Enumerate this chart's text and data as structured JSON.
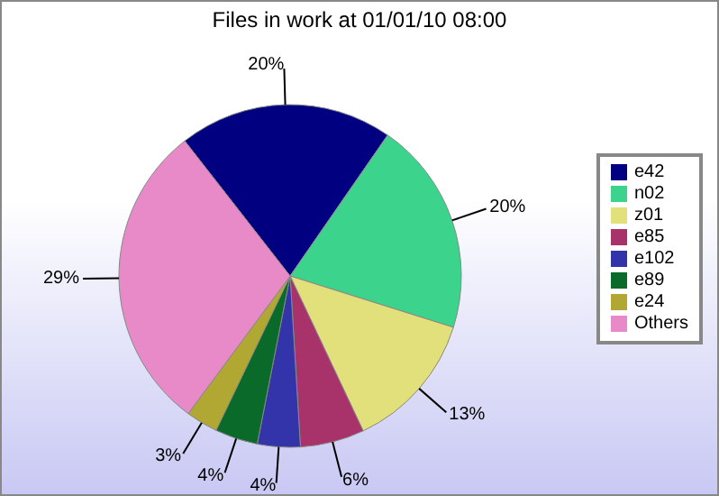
{
  "chart_data": {
    "type": "pie",
    "title": "Files in work at 01/01/10 08:00",
    "categories": [
      "e42",
      "n02",
      "z01",
      "e85",
      "e102",
      "e89",
      "e24",
      "Others"
    ],
    "values": [
      20,
      20,
      13,
      6,
      4,
      4,
      3,
      29
    ],
    "value_labels": [
      "20%",
      "20%",
      "13%",
      "6%",
      "4%",
      "4%",
      "3%",
      "29%"
    ],
    "colors": [
      "#000080",
      "#3cd48c",
      "#e2e07a",
      "#a8336a",
      "#3333aa",
      "#0a6a2a",
      "#b0a832",
      "#e88ac8"
    ],
    "legend": "right"
  }
}
